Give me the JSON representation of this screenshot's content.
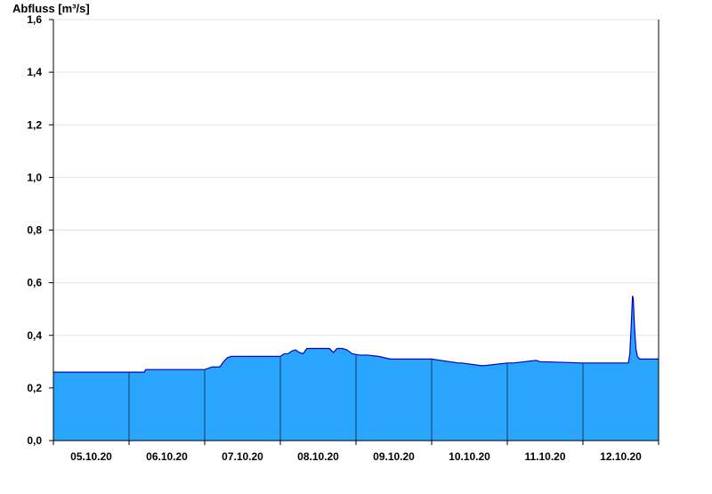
{
  "chart_data": {
    "type": "area",
    "title": "Abfluss [m³/s]",
    "xlabel": "",
    "ylabel": "Abfluss [m³/s]",
    "y_ticks": [
      "0,0",
      "0,2",
      "0,4",
      "0,6",
      "0,8",
      "1,0",
      "1,2",
      "1,4",
      "1,6"
    ],
    "ylim": [
      0,
      1.6
    ],
    "xlim": [
      0,
      8
    ],
    "x_unit": "days from 05.10.20 00:00",
    "x_tick_labels": [
      "05.10.20",
      "06.10.20",
      "07.10.20",
      "08.10.20",
      "09.10.20",
      "10.10.20",
      "11.10.20",
      "12.10.20"
    ],
    "grid": true,
    "colors": {
      "fill": "#2aa6ff",
      "line": "#0000cc",
      "grid": "#e6e6e6",
      "axis": "#000000",
      "day_separator": "#1a3a6a"
    },
    "series": [
      {
        "name": "",
        "x": [
          0.0,
          1.2,
          1.22,
          2.0,
          2.1,
          2.2,
          2.25,
          2.3,
          2.35,
          3.0,
          3.05,
          3.1,
          3.15,
          3.2,
          3.25,
          3.3,
          3.35,
          3.45,
          3.65,
          3.7,
          3.75,
          3.82,
          3.88,
          3.95,
          4.05,
          4.15,
          4.3,
          4.45,
          4.75,
          5.0,
          5.35,
          5.4,
          5.65,
          5.7,
          6.0,
          6.08,
          6.38,
          6.43,
          7.0,
          7.6,
          7.62,
          7.64,
          7.655,
          7.665,
          7.68,
          7.7,
          7.72,
          7.75,
          8.0
        ],
        "y": [
          0.26,
          0.26,
          0.27,
          0.27,
          0.28,
          0.28,
          0.3,
          0.315,
          0.32,
          0.32,
          0.33,
          0.33,
          0.34,
          0.345,
          0.335,
          0.33,
          0.35,
          0.35,
          0.35,
          0.335,
          0.35,
          0.35,
          0.345,
          0.33,
          0.325,
          0.325,
          0.32,
          0.31,
          0.31,
          0.31,
          0.295,
          0.295,
          0.285,
          0.285,
          0.295,
          0.295,
          0.305,
          0.3,
          0.295,
          0.295,
          0.33,
          0.45,
          0.55,
          0.54,
          0.44,
          0.35,
          0.32,
          0.31,
          0.31
        ]
      }
    ]
  }
}
